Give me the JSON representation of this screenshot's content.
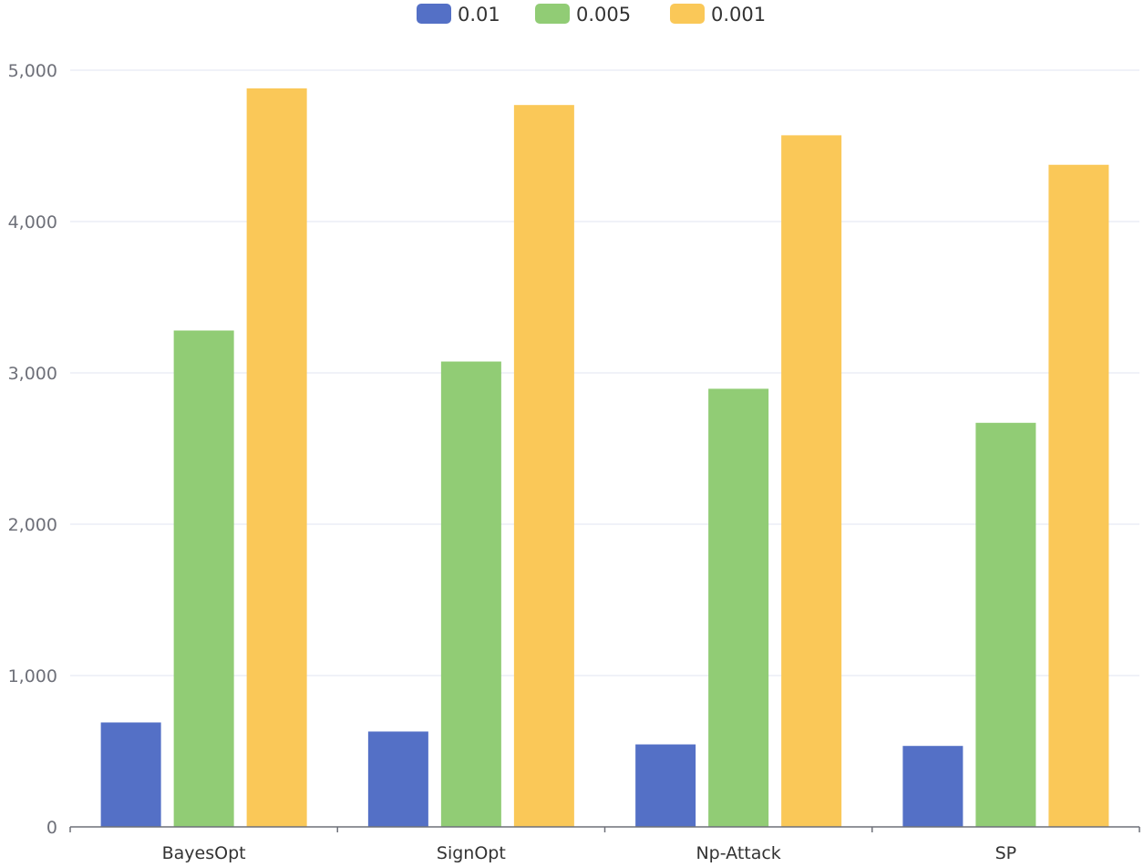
{
  "chart_data": {
    "type": "bar",
    "title": "",
    "xlabel": "",
    "ylabel": "",
    "categories": [
      "BayesOpt",
      "SignOpt",
      "Np-Attack",
      "SP"
    ],
    "series": [
      {
        "name": "0.01",
        "color": "#5470c6",
        "values": [
          690,
          630,
          545,
          535
        ]
      },
      {
        "name": "0.005",
        "color": "#91cc75",
        "values": [
          3280,
          3075,
          2895,
          2670
        ]
      },
      {
        "name": "0.001",
        "color": "#fac858",
        "values": [
          4880,
          4770,
          4570,
          4375
        ]
      }
    ],
    "ylim": [
      0,
      5000
    ],
    "yticks": [
      {
        "value": 0,
        "label": "0"
      },
      {
        "value": 1000,
        "label": "1,000"
      },
      {
        "value": 2000,
        "label": "2,000"
      },
      {
        "value": 3000,
        "label": "3,000"
      },
      {
        "value": 4000,
        "label": "4,000"
      },
      {
        "value": 5000,
        "label": "5,000"
      }
    ],
    "grid": true,
    "legend_position": "top-center"
  }
}
